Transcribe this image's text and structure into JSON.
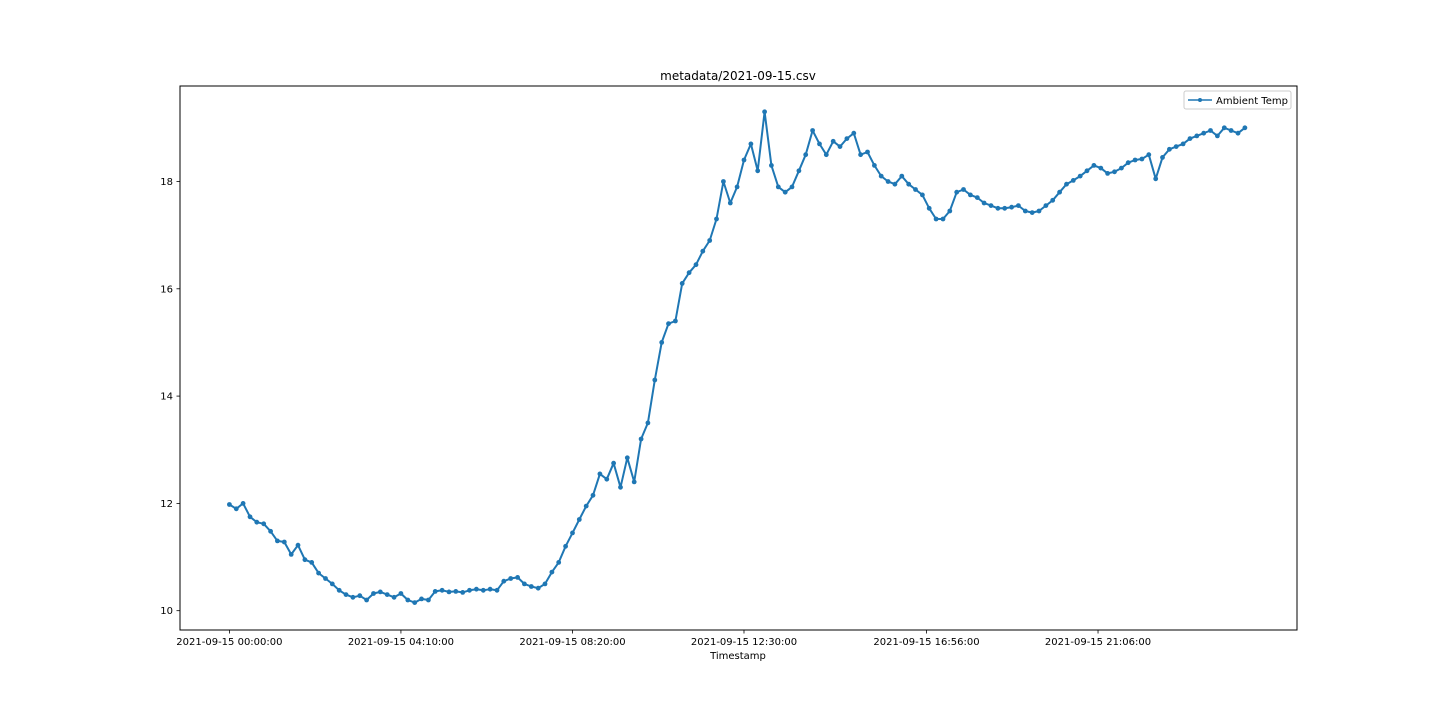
{
  "chart_data": {
    "type": "line",
    "title": "metadata/2021-09-15.csv",
    "xlabel": "Timestamp",
    "ylabel": "",
    "x_axis_type": "datetime",
    "x_ticks": [
      "2021-09-15 00:00:00",
      "2021-09-15 04:10:00",
      "2021-09-15 08:20:00",
      "2021-09-15 12:30:00",
      "2021-09-15 16:56:00",
      "2021-09-15 21:06:00"
    ],
    "y_ticks": [
      10,
      12,
      14,
      16,
      18
    ],
    "xlim": [
      "2021-09-14 22:48:00",
      "2021-09-16 01:56:00"
    ],
    "ylim": [
      9.64,
      19.78
    ],
    "grid": false,
    "legend_position": "upper right",
    "marker": "point",
    "color": "#1f77b4",
    "series": [
      {
        "name": "Ambient Temp",
        "x": [
          "2021-09-15 00:00",
          "2021-09-15 00:10",
          "2021-09-15 00:20",
          "2021-09-15 00:30",
          "2021-09-15 00:40",
          "2021-09-15 00:50",
          "2021-09-15 01:00",
          "2021-09-15 01:10",
          "2021-09-15 01:20",
          "2021-09-15 01:30",
          "2021-09-15 01:40",
          "2021-09-15 01:50",
          "2021-09-15 02:00",
          "2021-09-15 02:10",
          "2021-09-15 02:20",
          "2021-09-15 02:30",
          "2021-09-15 02:40",
          "2021-09-15 02:50",
          "2021-09-15 03:00",
          "2021-09-15 03:10",
          "2021-09-15 03:20",
          "2021-09-15 03:30",
          "2021-09-15 03:40",
          "2021-09-15 03:50",
          "2021-09-15 04:00",
          "2021-09-15 04:10",
          "2021-09-15 04:20",
          "2021-09-15 04:30",
          "2021-09-15 04:40",
          "2021-09-15 04:50",
          "2021-09-15 05:00",
          "2021-09-15 05:10",
          "2021-09-15 05:20",
          "2021-09-15 05:30",
          "2021-09-15 05:40",
          "2021-09-15 05:50",
          "2021-09-15 06:00",
          "2021-09-15 06:10",
          "2021-09-15 06:20",
          "2021-09-15 06:30",
          "2021-09-15 06:40",
          "2021-09-15 06:50",
          "2021-09-15 07:00",
          "2021-09-15 07:10",
          "2021-09-15 07:20",
          "2021-09-15 07:30",
          "2021-09-15 07:40",
          "2021-09-15 07:50",
          "2021-09-15 08:00",
          "2021-09-15 08:10",
          "2021-09-15 08:20",
          "2021-09-15 08:30",
          "2021-09-15 08:40",
          "2021-09-15 08:50",
          "2021-09-15 09:00",
          "2021-09-15 09:10",
          "2021-09-15 09:20",
          "2021-09-15 09:30",
          "2021-09-15 09:40",
          "2021-09-15 09:50",
          "2021-09-15 10:00",
          "2021-09-15 10:10",
          "2021-09-15 10:20",
          "2021-09-15 10:30",
          "2021-09-15 10:40",
          "2021-09-15 10:50",
          "2021-09-15 11:00",
          "2021-09-15 11:10",
          "2021-09-15 11:20",
          "2021-09-15 11:30",
          "2021-09-15 11:40",
          "2021-09-15 11:50",
          "2021-09-15 12:00",
          "2021-09-15 12:10",
          "2021-09-15 12:20",
          "2021-09-15 12:30",
          "2021-09-15 12:40",
          "2021-09-15 12:50",
          "2021-09-15 13:00",
          "2021-09-15 13:10",
          "2021-09-15 13:20",
          "2021-09-15 13:30",
          "2021-09-15 13:40",
          "2021-09-15 13:50",
          "2021-09-15 14:00",
          "2021-09-15 14:10",
          "2021-09-15 14:20",
          "2021-09-15 14:30",
          "2021-09-15 14:40",
          "2021-09-15 14:50",
          "2021-09-15 15:00",
          "2021-09-15 15:10",
          "2021-09-15 15:20",
          "2021-09-15 15:30",
          "2021-09-15 15:40",
          "2021-09-15 15:50",
          "2021-09-15 16:00",
          "2021-09-15 16:10",
          "2021-09-15 16:20",
          "2021-09-15 16:30",
          "2021-09-15 16:40",
          "2021-09-15 16:50",
          "2021-09-15 17:00",
          "2021-09-15 17:10",
          "2021-09-15 17:20",
          "2021-09-15 17:30",
          "2021-09-15 17:40",
          "2021-09-15 17:50",
          "2021-09-15 18:00",
          "2021-09-15 18:10",
          "2021-09-15 18:20",
          "2021-09-15 18:30",
          "2021-09-15 18:40",
          "2021-09-15 18:50",
          "2021-09-15 19:00",
          "2021-09-15 19:10",
          "2021-09-15 19:20",
          "2021-09-15 19:30",
          "2021-09-15 19:40",
          "2021-09-15 19:50",
          "2021-09-15 20:00",
          "2021-09-15 20:10",
          "2021-09-15 20:20",
          "2021-09-15 20:30",
          "2021-09-15 20:40",
          "2021-09-15 20:50",
          "2021-09-15 21:00",
          "2021-09-15 21:10",
          "2021-09-15 21:20",
          "2021-09-15 21:30",
          "2021-09-15 21:40",
          "2021-09-15 21:50",
          "2021-09-15 22:00",
          "2021-09-15 22:10",
          "2021-09-15 22:20",
          "2021-09-15 22:30",
          "2021-09-15 22:40",
          "2021-09-15 22:50",
          "2021-09-15 23:00",
          "2021-09-15 23:10",
          "2021-09-15 23:20",
          "2021-09-15 23:30",
          "2021-09-15 23:40",
          "2021-09-15 23:50",
          "2021-09-16 00:00",
          "2021-09-16 00:10",
          "2021-09-16 00:20",
          "2021-09-16 00:30",
          "2021-09-16 00:40"
        ],
        "y": [
          11.98,
          11.9,
          12.0,
          11.75,
          11.65,
          11.62,
          11.48,
          11.3,
          11.28,
          11.05,
          11.22,
          10.95,
          10.9,
          10.7,
          10.6,
          10.5,
          10.38,
          10.3,
          10.25,
          10.28,
          10.2,
          10.32,
          10.35,
          10.3,
          10.25,
          10.32,
          10.2,
          10.15,
          10.22,
          10.2,
          10.36,
          10.38,
          10.35,
          10.36,
          10.34,
          10.38,
          10.4,
          10.38,
          10.4,
          10.38,
          10.55,
          10.6,
          10.62,
          10.5,
          10.45,
          10.42,
          10.5,
          10.72,
          10.9,
          11.2,
          11.45,
          11.7,
          11.95,
          12.15,
          12.55,
          12.45,
          12.75,
          12.3,
          12.85,
          12.4,
          13.2,
          13.5,
          14.3,
          15.0,
          15.35,
          15.4,
          16.1,
          16.3,
          16.45,
          16.7,
          16.9,
          17.3,
          18.0,
          17.6,
          17.9,
          18.4,
          18.7,
          18.2,
          19.3,
          18.3,
          17.9,
          17.8,
          17.9,
          18.2,
          18.5,
          18.95,
          18.7,
          18.5,
          18.75,
          18.65,
          18.8,
          18.9,
          18.5,
          18.55,
          18.3,
          18.1,
          18.0,
          17.95,
          18.1,
          17.95,
          17.85,
          17.75,
          17.5,
          17.3,
          17.3,
          17.45,
          17.8,
          17.85,
          17.75,
          17.7,
          17.6,
          17.55,
          17.5,
          17.5,
          17.52,
          17.55,
          17.45,
          17.42,
          17.45,
          17.55,
          17.65,
          17.8,
          17.95,
          18.02,
          18.1,
          18.2,
          18.3,
          18.25,
          18.15,
          18.18,
          18.25,
          18.35,
          18.4,
          18.42,
          18.5,
          18.05,
          18.45,
          18.6,
          18.65,
          18.7,
          18.8,
          18.85,
          18.9,
          18.95,
          18.85,
          19.0,
          18.95,
          18.9,
          19.0
        ]
      }
    ]
  }
}
